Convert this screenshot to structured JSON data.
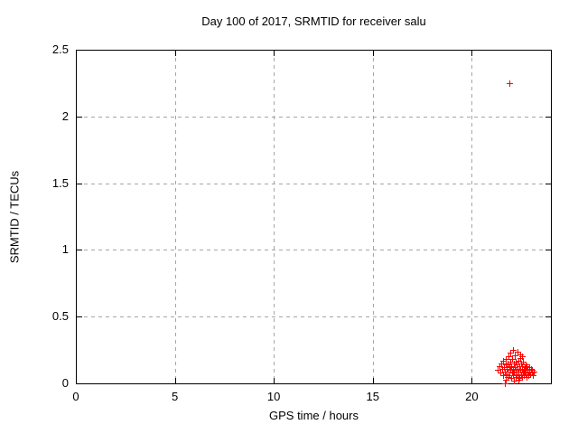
{
  "chart_data": {
    "type": "scatter",
    "title": "Day 100 of 2017, SRMTID for receiver salu",
    "xlabel": "GPS time / hours",
    "ylabel": "SRMTID / TECUs",
    "xlim": [
      0,
      24
    ],
    "ylim": [
      0,
      2.5
    ],
    "x_ticks": [
      0,
      5,
      10,
      15,
      20
    ],
    "y_ticks": [
      0,
      0.5,
      1,
      1.5,
      2,
      2.5
    ],
    "grid": "dashed",
    "legend": "none",
    "series": [
      {
        "name": "SRMTID",
        "marker": "plus",
        "color": "#ff0000",
        "points": [
          [
            21.88,
            2.25
          ],
          [
            21.33,
            0.1
          ],
          [
            21.4,
            0.13
          ],
          [
            21.46,
            0.08
          ],
          [
            21.5,
            0.15
          ],
          [
            21.54,
            0.11
          ],
          [
            21.57,
            0.06
          ],
          [
            21.6,
            0.17
          ],
          [
            21.63,
            0.12
          ],
          [
            21.66,
            0.09
          ],
          [
            21.68,
            0.0
          ],
          [
            21.7,
            0.14
          ],
          [
            21.72,
            0.07
          ],
          [
            21.74,
            0.18
          ],
          [
            21.76,
            0.11
          ],
          [
            21.79,
            0.05
          ],
          [
            21.81,
            0.15
          ],
          [
            21.83,
            0.09
          ],
          [
            21.86,
            0.2
          ],
          [
            21.89,
            0.12
          ],
          [
            21.91,
            0.06
          ],
          [
            21.93,
            0.16
          ],
          [
            21.96,
            0.1
          ],
          [
            21.98,
            0.04
          ],
          [
            22.0,
            0.13
          ],
          [
            22.02,
            0.08
          ],
          [
            22.05,
            0.18
          ],
          [
            22.07,
            0.11
          ],
          [
            22.09,
            0.06
          ],
          [
            22.11,
            0.15
          ],
          [
            22.13,
            0.09
          ],
          [
            22.16,
            0.21
          ],
          [
            22.18,
            0.12
          ],
          [
            22.2,
            0.05
          ],
          [
            22.22,
            0.16
          ],
          [
            22.24,
            0.1
          ],
          [
            22.26,
            0.07
          ],
          [
            22.28,
            0.14
          ],
          [
            22.3,
            0.24
          ],
          [
            22.32,
            0.11
          ],
          [
            22.34,
            0.06
          ],
          [
            22.36,
            0.17
          ],
          [
            22.38,
            0.09
          ],
          [
            22.4,
            0.13
          ],
          [
            22.42,
            0.04
          ],
          [
            22.44,
            0.19
          ],
          [
            22.46,
            0.11
          ],
          [
            22.48,
            0.07
          ],
          [
            22.5,
            0.15
          ],
          [
            22.52,
            0.1
          ],
          [
            22.54,
            0.05
          ],
          [
            22.56,
            0.13
          ],
          [
            22.58,
            0.08
          ],
          [
            22.6,
            0.16
          ],
          [
            22.62,
            0.11
          ],
          [
            22.64,
            0.06
          ],
          [
            22.66,
            0.12
          ],
          [
            22.68,
            0.09
          ],
          [
            22.7,
            0.14
          ],
          [
            22.72,
            0.07
          ],
          [
            22.74,
            0.11
          ],
          [
            22.76,
            0.05
          ],
          [
            22.78,
            0.13
          ],
          [
            22.8,
            0.08
          ],
          [
            22.83,
            0.1
          ],
          [
            22.86,
            0.06
          ],
          [
            22.89,
            0.12
          ],
          [
            22.92,
            0.09
          ],
          [
            22.95,
            0.07
          ],
          [
            22.98,
            0.11
          ],
          [
            23.02,
            0.08
          ],
          [
            23.06,
            0.1
          ],
          [
            23.1,
            0.06
          ],
          [
            23.14,
            0.09
          ],
          [
            21.95,
            0.23
          ],
          [
            22.1,
            0.25
          ],
          [
            22.47,
            0.22
          ],
          [
            22.55,
            0.2
          ],
          [
            21.7,
            0.03
          ],
          [
            22.15,
            0.02
          ],
          [
            22.35,
            0.03
          ]
        ]
      }
    ]
  },
  "colors": {
    "background": "#ffffff",
    "border": "#000000",
    "grid": "#a6a6a6",
    "text": "#000000",
    "marker": "#ff0000"
  }
}
